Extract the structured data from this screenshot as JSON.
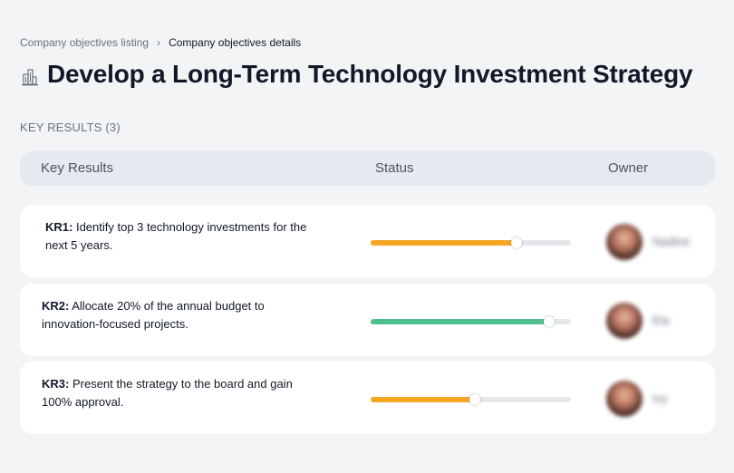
{
  "breadcrumb": {
    "parent": "Company objectives listing",
    "current": "Company objectives details"
  },
  "page": {
    "title": "Develop a Long-Term Technology Investment Strategy",
    "title_icon": "building-icon"
  },
  "section": {
    "label": "KEY RESULTS (3)"
  },
  "table": {
    "headers": {
      "key_results": "Key Results",
      "status": "Status",
      "owner": "Owner"
    },
    "rows": [
      {
        "code": "KR1:",
        "text": "Identify top 3 technology investments for the next 5 years.",
        "progress": 0.73,
        "color": "#f5a623",
        "owner": "Nadine"
      },
      {
        "code": "KR2:",
        "text": "Allocate 20% of the annual budget to innovation-focused projects.",
        "progress": 0.89,
        "color": "#4fc08d",
        "owner": "Ela"
      },
      {
        "code": "KR3:",
        "text": "Present the strategy to the board and gain 100% approval.",
        "progress": 0.52,
        "color": "#f5a623",
        "owner": "Ivy"
      }
    ]
  }
}
